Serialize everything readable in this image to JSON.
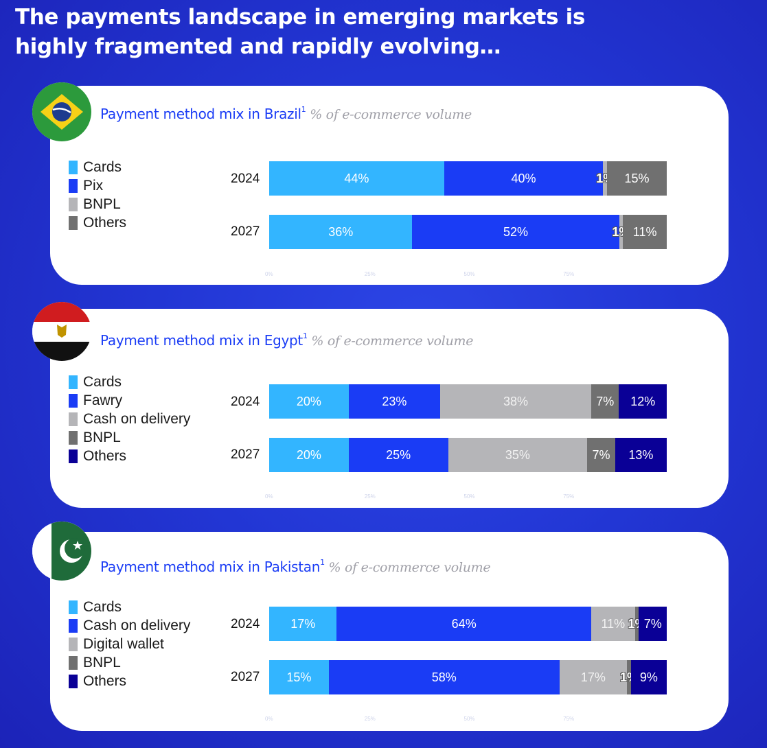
{
  "headline": {
    "line1": "The payments landscape in emerging markets is",
    "line2": "highly fragmented and rapidly evolving…"
  },
  "colors": {
    "cards": "#33b5ff",
    "blue": "#1a3cf5",
    "light_gray": "#b5b5b8",
    "dark_gray": "#707070",
    "navy": "#0a0096"
  },
  "panels": [
    {
      "flag_icon": "brazil-flag-icon",
      "title_main": "Payment method mix  in Brazil",
      "title_sup": "1",
      "title_sub": " % of e-commerce volume",
      "legend": [
        "Cards",
        "Pix",
        "BNPL",
        "Others"
      ],
      "axis_ticks": [
        "0%",
        "25%",
        "50%",
        "75%"
      ]
    },
    {
      "flag_icon": "egypt-flag-icon",
      "title_main": "Payment method mix in Egypt",
      "title_sup": "1",
      "title_sub": " % of e-commerce volume",
      "legend": [
        "Cards",
        "Fawry",
        "Cash on delivery",
        "BNPL",
        "Others"
      ],
      "axis_ticks": [
        "0%",
        "25%",
        "50%",
        "75%"
      ]
    },
    {
      "flag_icon": "pakistan-flag-icon",
      "title_main": "Payment method mix  in Pakistan",
      "title_sup": "1",
      "title_sub": " % of e-commerce volume",
      "legend": [
        "Cards",
        "Cash on delivery",
        "Digital wallet",
        "BNPL",
        "Others"
      ],
      "axis_ticks": [
        "0%",
        "25%",
        "50%",
        "75%"
      ]
    }
  ],
  "chart_data": [
    {
      "type": "bar",
      "stacked": true,
      "orientation": "horizontal",
      "title": "Payment method mix  in Brazil",
      "subtitle": "% of e-commerce volume",
      "categories": [
        "2024",
        "2027"
      ],
      "series": [
        {
          "name": "Cards",
          "values": [
            44,
            36
          ],
          "color": "#33b5ff"
        },
        {
          "name": "Pix",
          "values": [
            40,
            52
          ],
          "color": "#1a3cf5"
        },
        {
          "name": "BNPL",
          "values": [
            1,
            1
          ],
          "color": "#b5b5b8"
        },
        {
          "name": "Others",
          "values": [
            15,
            11
          ],
          "color": "#707070"
        }
      ],
      "xlim": [
        0,
        100
      ],
      "legend": "left",
      "grid": false
    },
    {
      "type": "bar",
      "stacked": true,
      "orientation": "horizontal",
      "title": "Payment method mix in Egypt",
      "subtitle": "% of e-commerce volume",
      "categories": [
        "2024",
        "2027"
      ],
      "series": [
        {
          "name": "Cards",
          "values": [
            20,
            20
          ],
          "color": "#33b5ff"
        },
        {
          "name": "Fawry",
          "values": [
            23,
            25
          ],
          "color": "#1a3cf5"
        },
        {
          "name": "Cash on delivery",
          "values": [
            38,
            35
          ],
          "color": "#b5b5b8"
        },
        {
          "name": "BNPL",
          "values": [
            7,
            7
          ],
          "color": "#707070"
        },
        {
          "name": "Others",
          "values": [
            12,
            13
          ],
          "color": "#0a0096"
        }
      ],
      "xlim": [
        0,
        100
      ],
      "legend": "left",
      "grid": false
    },
    {
      "type": "bar",
      "stacked": true,
      "orientation": "horizontal",
      "title": "Payment method mix  in Pakistan",
      "subtitle": "% of e-commerce volume",
      "categories": [
        "2024",
        "2027"
      ],
      "series": [
        {
          "name": "Cards",
          "values": [
            17,
            15
          ],
          "color": "#33b5ff"
        },
        {
          "name": "Cash on delivery",
          "values": [
            64,
            58
          ],
          "color": "#1a3cf5"
        },
        {
          "name": "Digital wallet",
          "values": [
            11,
            17
          ],
          "color": "#b5b5b8"
        },
        {
          "name": "BNPL",
          "values": [
            1,
            1
          ],
          "color": "#707070"
        },
        {
          "name": "Others",
          "values": [
            7,
            9
          ],
          "color": "#0a0096"
        }
      ],
      "xlim": [
        0,
        100
      ],
      "legend": "left",
      "grid": false
    }
  ]
}
